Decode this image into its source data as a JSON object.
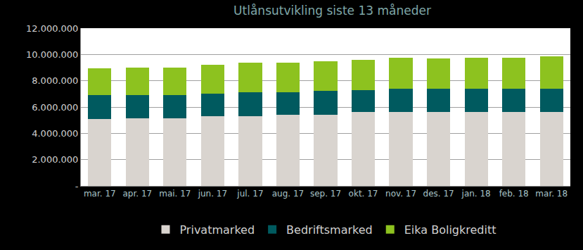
{
  "chart_data": {
    "type": "bar",
    "title": "Utlånsutvikling siste 13 måneder",
    "stacked": true,
    "grid": true,
    "legend": "bottom",
    "categories": [
      "mar. 17",
      "apr. 17",
      "mai. 17",
      "jun. 17",
      "jul. 17",
      "aug. 17",
      "sep. 17",
      "okt. 17",
      "nov. 17",
      "des. 17",
      "jan. 18",
      "feb. 18",
      "mar. 18"
    ],
    "series": [
      {
        "name": "Privatmarked",
        "color": "#d9d4cf",
        "values": [
          5100000,
          5150000,
          5150000,
          5300000,
          5300000,
          5400000,
          5400000,
          5600000,
          5600000,
          5600000,
          5600000,
          5600000,
          5600000
        ]
      },
      {
        "name": "Bedriftsmarked",
        "color": "#005a5f",
        "values": [
          1800000,
          1750000,
          1750000,
          1700000,
          1850000,
          1750000,
          1850000,
          1700000,
          1800000,
          1800000,
          1800000,
          1800000,
          1800000
        ]
      },
      {
        "name": "Eika Boligkreditt",
        "color": "#8dc21f",
        "values": [
          2050000,
          2100000,
          2100000,
          2200000,
          2200000,
          2200000,
          2250000,
          2300000,
          2350000,
          2300000,
          2350000,
          2350000,
          2450000
        ]
      }
    ],
    "ylim": [
      0,
      12000000
    ],
    "yticks": [
      {
        "value": 0,
        "label": "-"
      },
      {
        "value": 2000000,
        "label": "2.000.000"
      },
      {
        "value": 4000000,
        "label": "4.000.000"
      },
      {
        "value": 6000000,
        "label": "6.000.000"
      },
      {
        "value": 8000000,
        "label": "8.000.000"
      },
      {
        "value": 10000000,
        "label": "10.000.000"
      },
      {
        "value": 12000000,
        "label": "12.000.000"
      }
    ]
  }
}
